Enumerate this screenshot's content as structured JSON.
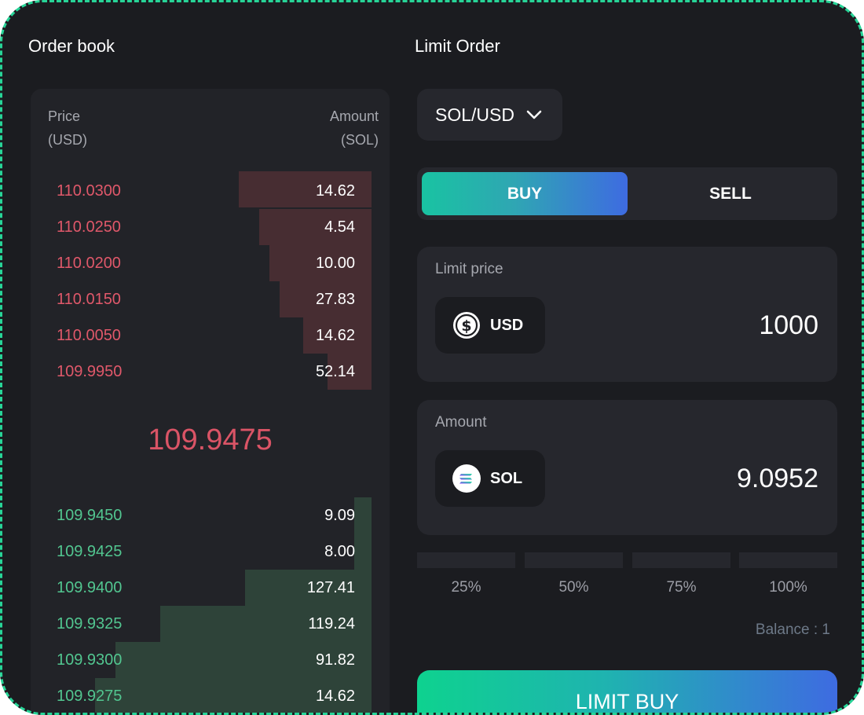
{
  "order_book": {
    "title": "Order book",
    "price_header": "Price",
    "price_unit": "(USD)",
    "amount_header": "Amount",
    "amount_unit": "(SOL)",
    "asks": [
      {
        "price": "110.0300",
        "amount": "14.62",
        "depth": 0.39
      },
      {
        "price": "110.0250",
        "amount": "4.54",
        "depth": 0.33
      },
      {
        "price": "110.0200",
        "amount": "10.00",
        "depth": 0.3
      },
      {
        "price": "110.0150",
        "amount": "27.83",
        "depth": 0.27
      },
      {
        "price": "110.0050",
        "amount": "14.62",
        "depth": 0.2
      },
      {
        "price": "109.9950",
        "amount": "52.14",
        "depth": 0.13
      }
    ],
    "mid_price": "109.9475",
    "bids": [
      {
        "price": "109.9450",
        "amount": "9.09",
        "depth": 0.05
      },
      {
        "price": "109.9425",
        "amount": "8.00",
        "depth": 0.05
      },
      {
        "price": "109.9400",
        "amount": "127.41",
        "depth": 0.37
      },
      {
        "price": "109.9325",
        "amount": "119.24",
        "depth": 0.62
      },
      {
        "price": "109.9300",
        "amount": "91.82",
        "depth": 0.75
      },
      {
        "price": "109.9275",
        "amount": "14.62",
        "depth": 0.81
      }
    ],
    "colors": {
      "ask": "#e0586a",
      "bid": "#52c690",
      "ask_depth": "#472d32",
      "bid_depth": "#2e4339"
    }
  },
  "limit_order": {
    "title": "Limit Order",
    "pair": "SOL/USD",
    "tabs": {
      "buy": "BUY",
      "sell": "SELL"
    },
    "limit_price": {
      "label": "Limit price",
      "token": "USD",
      "icon": "dollar-coin-icon",
      "value": "1000"
    },
    "amount": {
      "label": "Amount",
      "token": "SOL",
      "icon": "solana-icon",
      "value": "9.0952"
    },
    "percentages": [
      "25%",
      "50%",
      "75%",
      "100%"
    ],
    "balance": "Balance : 1",
    "submit_label": "LIMIT BUY"
  }
}
